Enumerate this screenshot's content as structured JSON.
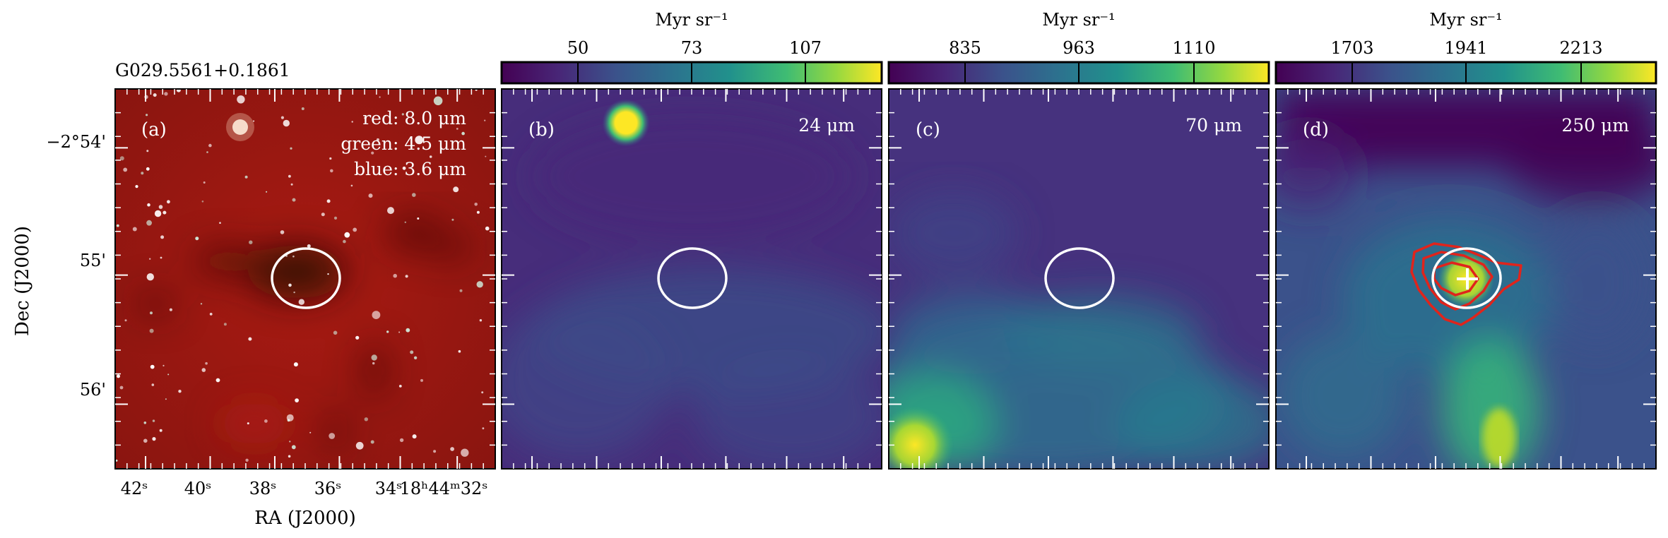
{
  "figure": {
    "source_label": "G029.5561+0.1861",
    "x_axis_label": "RA (J2000)",
    "y_axis_label": "Dec (J2000)",
    "ra_ticks": [
      "42ˢ",
      "40ˢ",
      "38ˢ",
      "36ˢ",
      "34ˢ",
      "18ʰ44ᵐ32ˢ"
    ],
    "dec_ticks": [
      "−2°54'",
      "55'",
      "56'"
    ]
  },
  "panels": [
    {
      "id": "a",
      "tag": "(a)",
      "legend": [
        "red: 8.0 μm",
        "green: 4.5 μm",
        "blue: 3.6 μm"
      ],
      "colorbar": null
    },
    {
      "id": "b",
      "tag": "(b)",
      "wavelength": "24 μm",
      "colorbar": {
        "unit": "Myr sr⁻¹",
        "ticks": [
          "50",
          "73",
          "107"
        ]
      }
    },
    {
      "id": "c",
      "tag": "(c)",
      "wavelength": "70 μm",
      "colorbar": {
        "unit": "Myr sr⁻¹",
        "ticks": [
          "835",
          "963",
          "1110"
        ]
      }
    },
    {
      "id": "d",
      "tag": "(d)",
      "wavelength": "250 μm",
      "colorbar": {
        "unit": "Myr sr⁻¹",
        "ticks": [
          "1703",
          "1941",
          "2213"
        ]
      }
    }
  ],
  "colors": {
    "viridis_low": "#440154",
    "viridis_mid": "#21918c",
    "viridis_high": "#fde725",
    "contour": "#e0241c",
    "marker": "#ffffff"
  }
}
